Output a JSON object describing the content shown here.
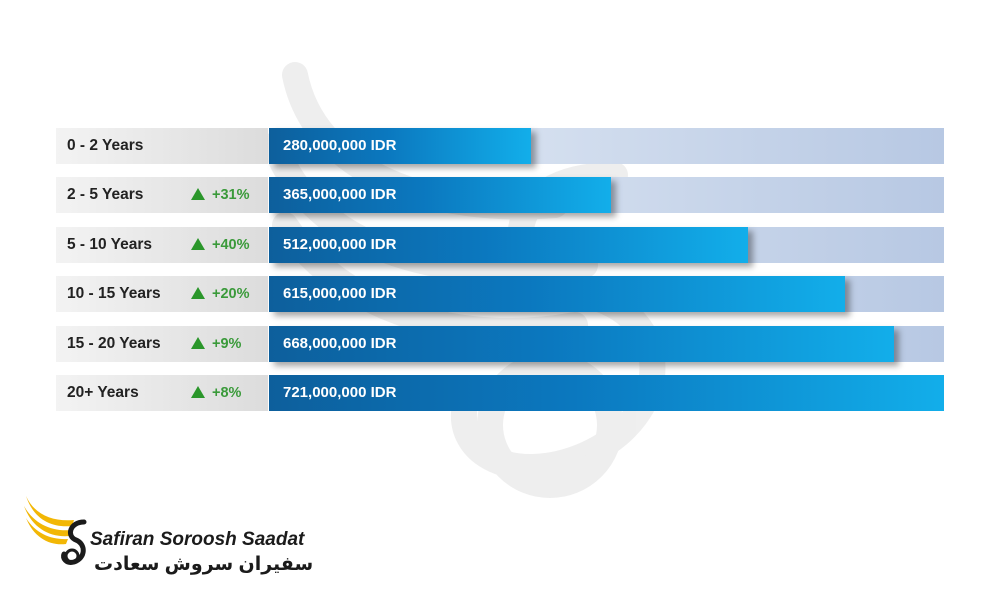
{
  "chart_data": {
    "type": "bar",
    "orientation": "horizontal",
    "categories": [
      "0 - 2 Years",
      "2 - 5 Years",
      "5 - 10 Years",
      "10 - 15 Years",
      "15 - 20 Years",
      "20+ Years"
    ],
    "values": [
      280000000,
      365000000,
      512000000,
      615000000,
      668000000,
      721000000
    ],
    "value_labels": [
      "280,000,000 IDR",
      "365,000,000 IDR",
      "512,000,000 IDR",
      "615,000,000 IDR",
      "668,000,000 IDR",
      "721,000,000 IDR"
    ],
    "growth_labels": [
      "",
      "+31%",
      "+40%",
      "+20%",
      "+9%",
      "+8%"
    ],
    "xlim": [
      0,
      721000000
    ],
    "grid": false,
    "legend": "none",
    "colors": {
      "bar_dark": "#0d5f9c",
      "bar_light": "#12aeea",
      "track_light": "#e7eef7",
      "track_dark": "#b7c8e3",
      "growth": "#2a962a"
    }
  },
  "brand": {
    "name_latin": "Safiran Soroosh Saadat",
    "name_persian": "سفیران سروش سعادت",
    "logo_icon": "winged-s-logo-icon",
    "watermark_icon": "winged-s-watermark-icon"
  }
}
